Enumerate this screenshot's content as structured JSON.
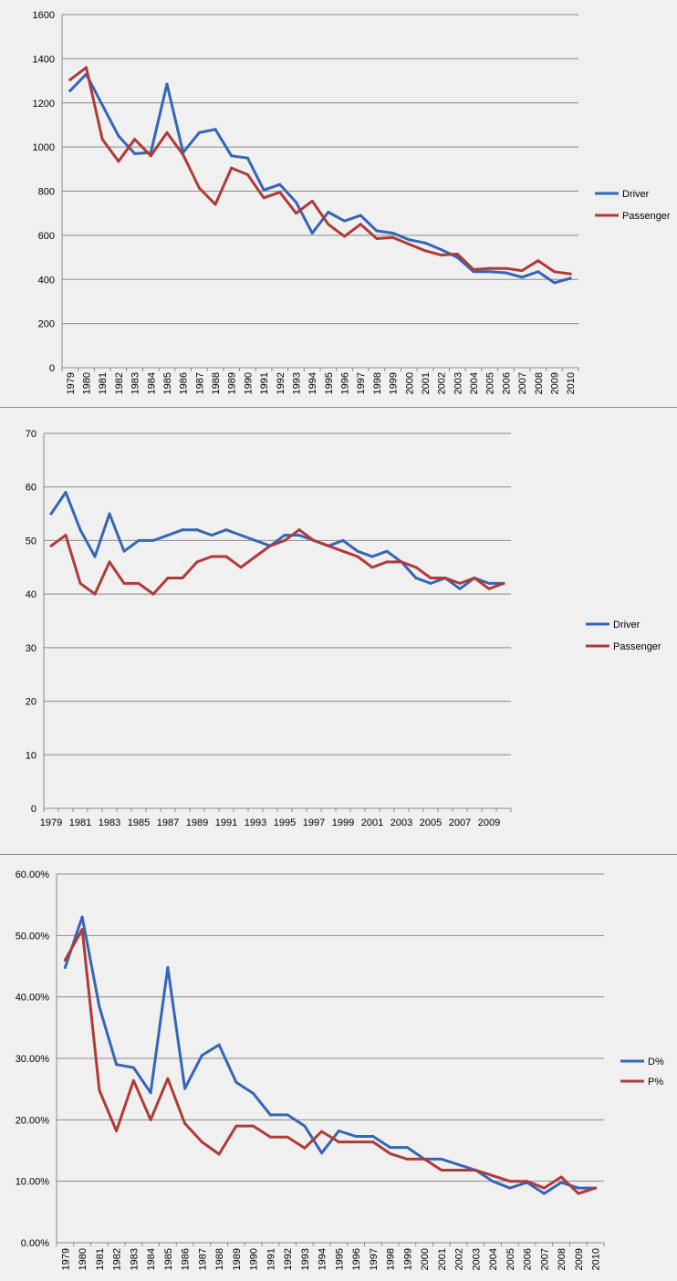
{
  "chart_data": [
    {
      "type": "line",
      "x": [
        "1979",
        "1980",
        "1981",
        "1982",
        "1983",
        "1984",
        "1985",
        "1986",
        "1987",
        "1988",
        "1989",
        "1990",
        "1991",
        "1992",
        "1993",
        "1994",
        "1995",
        "1996",
        "1997",
        "1998",
        "1999",
        "2000",
        "2001",
        "2002",
        "2003",
        "2004",
        "2005",
        "2006",
        "2007",
        "2008",
        "2009",
        "2010"
      ],
      "x_tick_labels": [
        "1979",
        "1980",
        "1981",
        "1982",
        "1983",
        "1984",
        "1985",
        "1986",
        "1987",
        "1988",
        "1989",
        "1990",
        "1991",
        "1992",
        "1993",
        "1994",
        "1995",
        "1996",
        "1997",
        "1998",
        "1999",
        "2000",
        "2001",
        "2002",
        "2003",
        "2004",
        "2005",
        "2006",
        "2007",
        "2008",
        "2009",
        "2010"
      ],
      "series": [
        {
          "name": "Driver",
          "color": "#3366b8",
          "values": [
            1255,
            1330,
            1190,
            1050,
            970,
            975,
            1285,
            975,
            1065,
            1080,
            960,
            950,
            805,
            830,
            750,
            610,
            705,
            665,
            690,
            620,
            610,
            580,
            565,
            535,
            500,
            435,
            435,
            430,
            410,
            435,
            385,
            405
          ]
        },
        {
          "name": "Passenger",
          "color": "#b03a36",
          "values": [
            1305,
            1360,
            1035,
            935,
            1035,
            960,
            1065,
            965,
            815,
            740,
            905,
            875,
            770,
            795,
            700,
            755,
            650,
            595,
            650,
            585,
            590,
            560,
            530,
            510,
            515,
            445,
            450,
            450,
            440,
            485,
            435,
            425
          ]
        }
      ],
      "ylim": [
        0,
        1600
      ],
      "y_ticks": [
        "0",
        "200",
        "400",
        "600",
        "800",
        "1000",
        "1200",
        "1400",
        "1600"
      ],
      "grid": true,
      "legend": "right"
    },
    {
      "type": "line",
      "x": [
        "1979",
        "1980",
        "1981",
        "1982",
        "1983",
        "1984",
        "1985",
        "1986",
        "1987",
        "1988",
        "1989",
        "1990",
        "1991",
        "1992",
        "1993",
        "1994",
        "1995",
        "1996",
        "1997",
        "1998",
        "1999",
        "2000",
        "2001",
        "2002",
        "2003",
        "2004",
        "2005",
        "2006",
        "2007",
        "2008",
        "2009",
        "2010"
      ],
      "x_tick_labels": [
        "1979",
        "1981",
        "1983",
        "1985",
        "1987",
        "1989",
        "1991",
        "1993",
        "1995",
        "1997",
        "1999",
        "2001",
        "2003",
        "2005",
        "2007",
        "2009"
      ],
      "series": [
        {
          "name": "Driver",
          "color": "#3366b8",
          "values": [
            55,
            59,
            52,
            47,
            55,
            48,
            50,
            50,
            51,
            52,
            52,
            51,
            52,
            51,
            50,
            49,
            51,
            51,
            50,
            49,
            50,
            48,
            47,
            48,
            46,
            43,
            42,
            43,
            41,
            43,
            42,
            42
          ]
        },
        {
          "name": "Passenger",
          "color": "#b03a36",
          "values": [
            49,
            51,
            42,
            40,
            46,
            42,
            42,
            40,
            43,
            43,
            46,
            47,
            47,
            45,
            47,
            49,
            50,
            52,
            50,
            49,
            48,
            47,
            45,
            46,
            46,
            45,
            43,
            43,
            42,
            43,
            41,
            42
          ]
        }
      ],
      "ylim": [
        0,
        70
      ],
      "y_ticks": [
        "0",
        "10",
        "20",
        "30",
        "40",
        "50",
        "60",
        "70"
      ],
      "grid": true,
      "legend": "right"
    },
    {
      "type": "line",
      "x": [
        "1979",
        "1980",
        "1981",
        "1982",
        "1983",
        "1984",
        "1985",
        "1986",
        "1987",
        "1988",
        "1989",
        "1990",
        "1991",
        "1992",
        "1993",
        "1994",
        "1995",
        "1996",
        "1997",
        "1998",
        "1999",
        "2000",
        "2001",
        "2002",
        "2003",
        "2004",
        "2005",
        "2006",
        "2007",
        "2008",
        "2009",
        "2010"
      ],
      "x_tick_labels": [
        "1979",
        "1980",
        "1981",
        "1982",
        "1983",
        "1984",
        "1985",
        "1986",
        "1987",
        "1988",
        "1989",
        "1990",
        "1991",
        "1992",
        "1993",
        "1994",
        "1995",
        "1996",
        "1997",
        "1998",
        "1999",
        "2000",
        "2001",
        "2002",
        "2003",
        "2004",
        "2005",
        "2006",
        "2007",
        "2008",
        "2009",
        "2010"
      ],
      "series": [
        {
          "name": "D%",
          "color": "#3366b8",
          "values": [
            44.8,
            53.0,
            38.4,
            29.0,
            28.5,
            24.4,
            44.8,
            25.1,
            30.5,
            32.2,
            26.1,
            24.3,
            20.8,
            20.8,
            19.0,
            14.6,
            18.2,
            17.3,
            17.3,
            15.5,
            15.5,
            13.6,
            13.6,
            12.7,
            11.8,
            10.0,
            8.9,
            9.8,
            8.0,
            9.8,
            8.9,
            8.9
          ]
        },
        {
          "name": "P%",
          "color": "#b03a36",
          "values": [
            46.0,
            51.0,
            24.8,
            18.2,
            26.4,
            20.0,
            26.7,
            19.4,
            16.4,
            14.4,
            19.0,
            19.0,
            17.2,
            17.2,
            15.4,
            18.1,
            16.4,
            16.4,
            16.4,
            14.5,
            13.6,
            13.6,
            11.8,
            11.8,
            11.8,
            10.9,
            10.0,
            10.0,
            8.9,
            10.7,
            8.0,
            8.9
          ]
        }
      ],
      "ylim": [
        0,
        60
      ],
      "y_ticks": [
        "0.00%",
        "10.00%",
        "20.00%",
        "30.00%",
        "40.00%",
        "50.00%",
        "60.00%"
      ],
      "grid": true,
      "legend": "right"
    }
  ]
}
